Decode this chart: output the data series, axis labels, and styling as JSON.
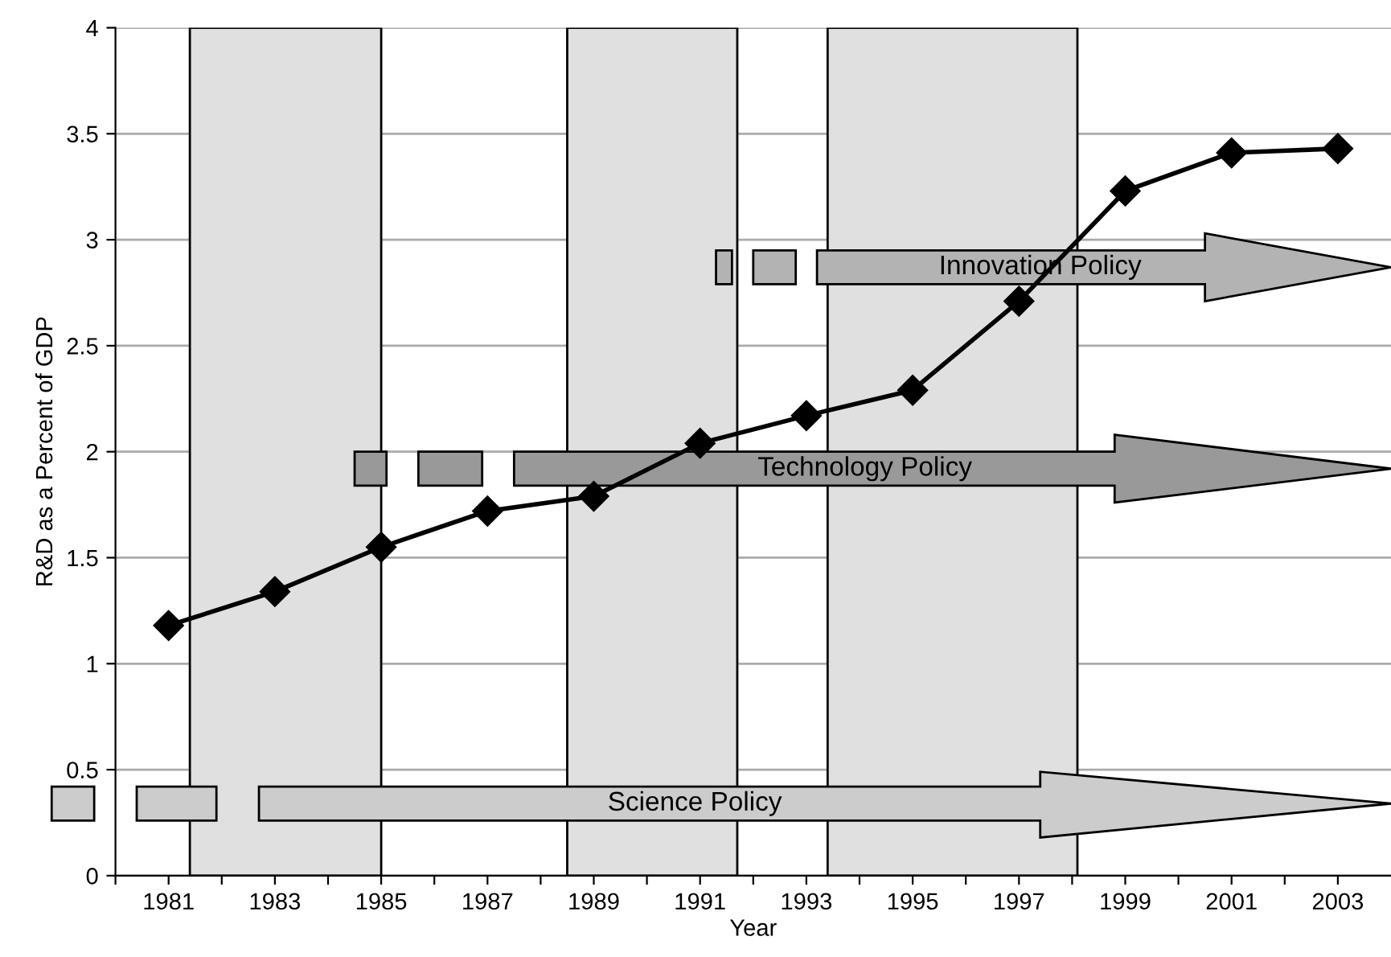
{
  "chart_data": {
    "type": "line",
    "xlabel": "Year",
    "ylabel": "R&D as a Percent of GDP",
    "x": [
      1981,
      1983,
      1985,
      1987,
      1989,
      1991,
      1993,
      1995,
      1997,
      1999,
      2001,
      2003
    ],
    "series": [
      {
        "color": "#000000",
        "values": [
          1.18,
          1.34,
          1.55,
          1.72,
          1.79,
          2.04,
          2.17,
          2.29,
          2.71,
          3.23,
          3.41,
          3.43
        ]
      }
    ],
    "marker": "diamond",
    "line_style": "solid",
    "grid": "y",
    "legend": false,
    "xlim": [
      1980,
      2004
    ],
    "xticks": [
      {
        "value": 1980,
        "label": null
      },
      1981,
      {
        "value": 1982,
        "label": null
      },
      1983,
      {
        "value": 1984,
        "label": null
      },
      1985,
      {
        "value": 1986,
        "label": null
      },
      1987,
      {
        "value": 1988,
        "label": null
      },
      1989,
      {
        "value": 1990,
        "label": null
      },
      1991,
      {
        "value": 1992,
        "label": null
      },
      1993,
      {
        "value": 1994,
        "label": null
      },
      1995,
      {
        "value": 1996,
        "label": null
      },
      1997,
      {
        "value": 1998,
        "label": null
      },
      1999,
      {
        "value": 2000,
        "label": null
      },
      2001,
      {
        "value": 2002,
        "label": null
      },
      2003
    ],
    "ylim": [
      0,
      4
    ],
    "yticks": [
      0,
      0.5,
      1,
      1.5,
      2,
      2.5,
      3,
      3.5,
      4
    ],
    "bands": [
      {
        "axis": "x",
        "from": 1981.4,
        "to": 1985.0,
        "color": "#e0e0e0"
      },
      {
        "axis": "x",
        "from": 1988.5,
        "to": 1991.7,
        "color": "#e0e0e0"
      },
      {
        "axis": "x",
        "from": 1993.4,
        "to": 1998.1,
        "color": "#e0e0e0"
      }
    ],
    "annotations": [
      "Science Policy",
      "Technology Policy",
      "Innovation Policy"
    ]
  }
}
